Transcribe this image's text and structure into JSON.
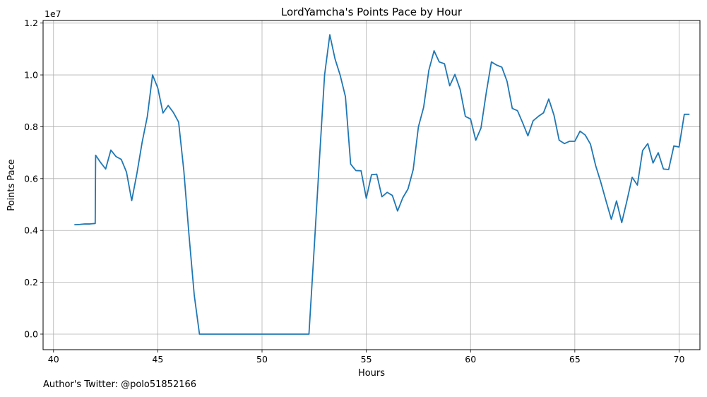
{
  "chart_data": {
    "type": "line",
    "title": "LordYamcha's Points Pace by Hour",
    "xlabel": "Hours",
    "ylabel": "Points Pace",
    "y_offset_label": "1e7",
    "xlim": [
      39.5,
      71.0
    ],
    "ylim": [
      -0.06,
      1.21
    ],
    "x_ticks": [
      40,
      45,
      50,
      55,
      60,
      65,
      70
    ],
    "y_ticks": [
      0.0,
      0.2,
      0.4,
      0.6,
      0.8,
      1.0,
      1.2
    ],
    "x_tick_labels": [
      "40",
      "45",
      "50",
      "55",
      "60",
      "65",
      "70"
    ],
    "y_tick_labels": [
      "0.0",
      "0.2",
      "0.4",
      "0.6",
      "0.8",
      "1.0",
      "1.2"
    ],
    "grid": true,
    "series": [
      {
        "color": "#1f77b4",
        "x": [
          41.0,
          41.25,
          41.5,
          41.75,
          42.0,
          42.02,
          42.25,
          42.5,
          42.75,
          43.0,
          43.25,
          43.5,
          43.75,
          44.0,
          44.25,
          44.5,
          44.75,
          45.0,
          45.25,
          45.5,
          45.75,
          46.0,
          46.25,
          46.5,
          46.75,
          47.0,
          47.25,
          52.25,
          52.5,
          52.75,
          53.0,
          53.25,
          53.5,
          53.75,
          54.0,
          54.25,
          54.5,
          54.75,
          55.0,
          55.25,
          55.5,
          55.75,
          56.0,
          56.25,
          56.5,
          56.75,
          57.0,
          57.25,
          57.5,
          57.75,
          58.0,
          58.25,
          58.5,
          58.75,
          59.0,
          59.25,
          59.5,
          59.75,
          60.0,
          60.25,
          60.5,
          60.75,
          61.0,
          61.25,
          61.5,
          61.75,
          62.0,
          62.25,
          62.5,
          62.75,
          63.0,
          63.25,
          63.5,
          63.75,
          64.0,
          64.25,
          64.5,
          64.75,
          65.0,
          65.25,
          65.5,
          65.75,
          66.0,
          66.25,
          66.5,
          66.75,
          67.0,
          67.25,
          67.5,
          67.75,
          68.0,
          68.25,
          68.5,
          68.75,
          69.0,
          69.25,
          69.5,
          69.75,
          70.0,
          70.25,
          70.5
        ],
        "y": [
          0.422,
          0.423,
          0.425,
          0.425,
          0.427,
          0.69,
          0.663,
          0.637,
          0.71,
          0.685,
          0.674,
          0.625,
          0.515,
          0.62,
          0.74,
          0.84,
          1.0,
          0.95,
          0.853,
          0.882,
          0.855,
          0.818,
          0.63,
          0.38,
          0.15,
          0.0,
          0.0,
          0.0,
          0.33,
          0.67,
          1.0,
          1.155,
          1.062,
          0.998,
          0.916,
          0.656,
          0.631,
          0.63,
          0.524,
          0.615,
          0.617,
          0.53,
          0.547,
          0.535,
          0.475,
          0.526,
          0.56,
          0.635,
          0.8,
          0.875,
          1.018,
          1.093,
          1.05,
          1.043,
          0.958,
          1.002,
          0.944,
          0.84,
          0.83,
          0.748,
          0.795,
          0.93,
          1.05,
          1.038,
          1.03,
          0.975,
          0.871,
          0.862,
          0.815,
          0.765,
          0.823,
          0.84,
          0.854,
          0.907,
          0.845,
          0.748,
          0.735,
          0.744,
          0.744,
          0.783,
          0.768,
          0.733,
          0.65,
          0.585,
          0.513,
          0.443,
          0.514,
          0.43,
          0.515,
          0.605,
          0.575,
          0.708,
          0.735,
          0.66,
          0.7,
          0.637,
          0.635,
          0.726,
          0.722,
          0.848,
          0.848
        ]
      }
    ]
  },
  "footer": {
    "credit": "Author's Twitter: @polo51852166"
  }
}
